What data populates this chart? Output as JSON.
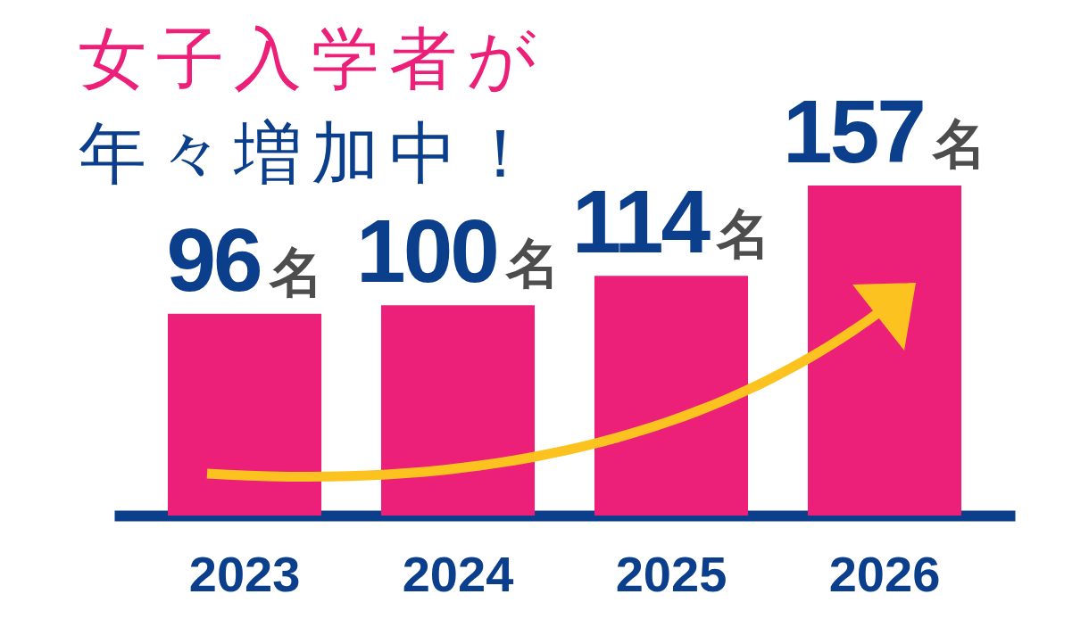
{
  "chart_data": {
    "type": "bar",
    "title": "女子入学者が",
    "subtitle": "年々増加中！",
    "categories": [
      "2023",
      "2024",
      "2025",
      "2026"
    ],
    "values": [
      96,
      100,
      114,
      157
    ],
    "color": "#ec1f79",
    "value_labels": [
      "96名",
      "100名",
      "114名",
      "157名"
    ]
  }
}
